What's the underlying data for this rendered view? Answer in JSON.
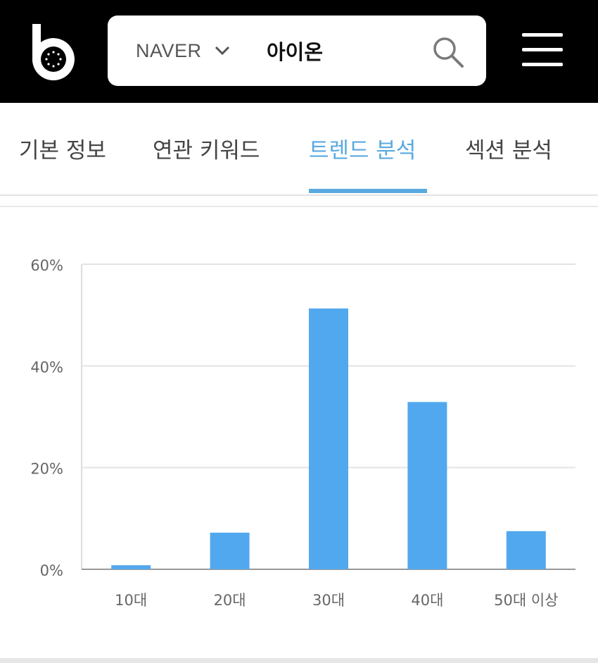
{
  "header": {
    "logo_icon": "b-logo-icon",
    "engine": "NAVER",
    "query": "아이온",
    "search_icon": "search-icon",
    "menu_icon": "hamburger-menu-icon"
  },
  "tabs": [
    {
      "label": "기본 정보",
      "active": false
    },
    {
      "label": "연관 키워드",
      "active": false
    },
    {
      "label": "트렌드 분석",
      "active": true
    },
    {
      "label": "섹션 분석",
      "active": false
    }
  ],
  "colors": {
    "accent": "#5aa9e0",
    "bar": "#52a8ef",
    "header_bg": "#000000"
  },
  "chart_data": {
    "type": "bar",
    "categories": [
      "10대",
      "20대",
      "30대",
      "40대",
      "50대 이상"
    ],
    "values": [
      0.8,
      7.2,
      51.3,
      32.9,
      7.5
    ],
    "y_ticks": [
      "0%",
      "20%",
      "40%",
      "60%"
    ],
    "ylim": [
      0,
      60
    ],
    "grid": true
  }
}
